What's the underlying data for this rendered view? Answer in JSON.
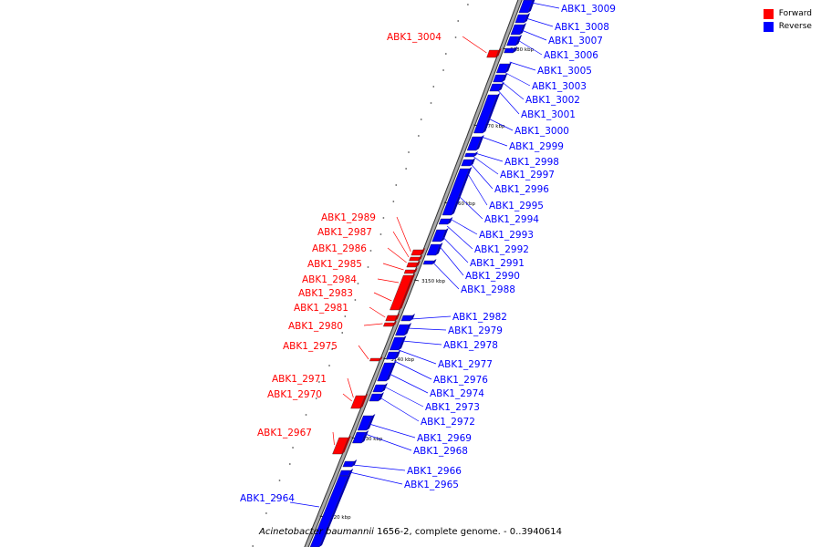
{
  "legend": {
    "forward_label": "Forward",
    "reverse_label": "Reverse",
    "forward_color": "#ff0000",
    "reverse_color": "#0000ff"
  },
  "caption_parts": {
    "organism": "Acinetobacter baumannii",
    "rest": " 1656-2, complete genome. - 0..3940614"
  },
  "ticks": [
    "3180 kbp",
    "3170 kbp",
    "3160 kbp",
    "3150 kbp",
    "3140 kbp",
    "3130 kbp",
    "3120 kbp"
  ],
  "genes_reverse": [
    "ABK1_3009",
    "ABK1_3008",
    "ABK1_3007",
    "ABK1_3006",
    "ABK1_3005",
    "ABK1_3003",
    "ABK1_3002",
    "ABK1_3001",
    "ABK1_3000",
    "ABK1_2999",
    "ABK1_2998",
    "ABK1_2997",
    "ABK1_2996",
    "ABK1_2995",
    "ABK1_2994",
    "ABK1_2993",
    "ABK1_2992",
    "ABK1_2991",
    "ABK1_2990",
    "ABK1_2988",
    "ABK1_2982",
    "ABK1_2979",
    "ABK1_2978",
    "ABK1_2977",
    "ABK1_2976",
    "ABK1_2974",
    "ABK1_2973",
    "ABK1_2972",
    "ABK1_2969",
    "ABK1_2968",
    "ABK1_2966",
    "ABK1_2965",
    "ABK1_2964"
  ],
  "genes_forward": [
    "ABK1_3004",
    "ABK1_2989",
    "ABK1_2987",
    "ABK1_2986",
    "ABK1_2985",
    "ABK1_2984",
    "ABK1_2983",
    "ABK1_2981",
    "ABK1_2980",
    "ABK1_2975",
    "ABK1_2971",
    "ABK1_2970",
    "ABK1_2967"
  ]
}
